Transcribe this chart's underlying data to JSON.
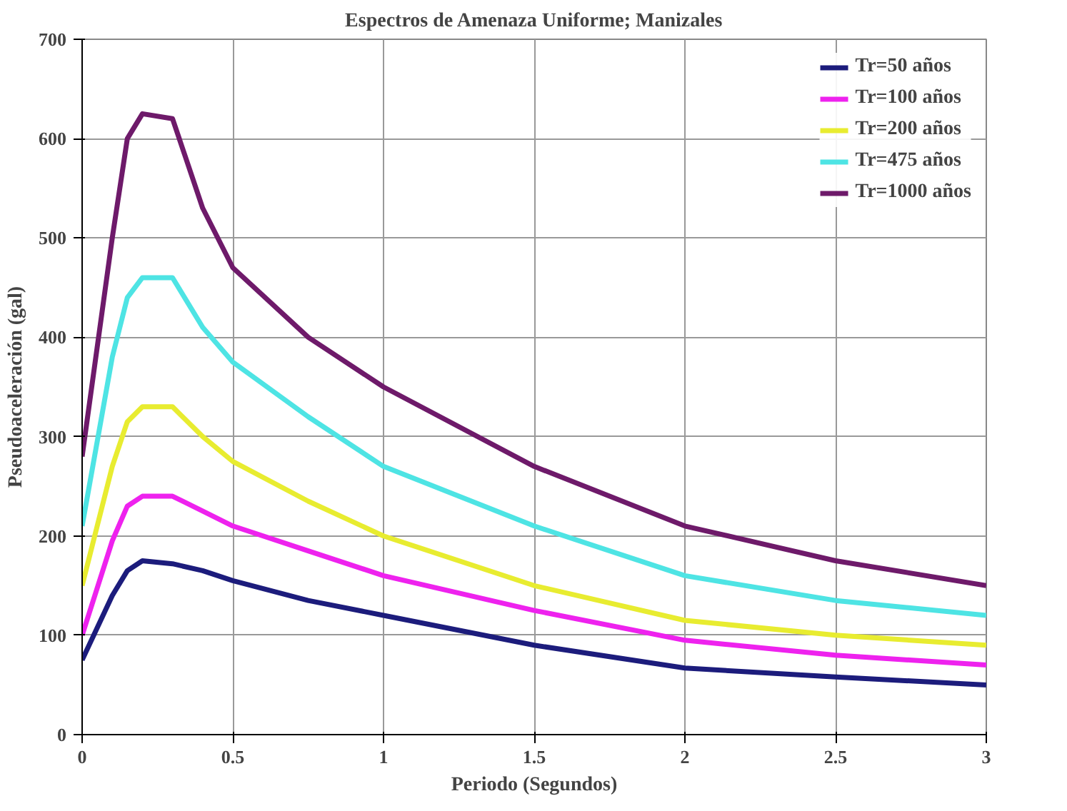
{
  "chart_data": {
    "type": "line",
    "title": "Espectros de Amenaza Uniforme; Manizales",
    "xlabel": "Periodo (Segundos)",
    "ylabel": "Pseudoaceleración (gal)",
    "x": [
      0,
      0.1,
      0.15,
      0.2,
      0.3,
      0.4,
      0.5,
      0.75,
      1,
      1.5,
      2,
      2.5,
      3
    ],
    "series": [
      {
        "name": "Tr=50 años",
        "color": "#1c1c7c",
        "values": [
          75,
          140,
          165,
          175,
          172,
          165,
          155,
          135,
          120,
          90,
          67,
          58,
          50
        ]
      },
      {
        "name": "Tr=100 años",
        "color": "#ee22ee",
        "values": [
          100,
          195,
          230,
          240,
          240,
          225,
          210,
          185,
          160,
          125,
          95,
          80,
          70
        ]
      },
      {
        "name": "Tr=200 años",
        "color": "#e8ec30",
        "values": [
          150,
          270,
          315,
          330,
          330,
          300,
          275,
          235,
          200,
          150,
          115,
          100,
          90
        ]
      },
      {
        "name": "Tr=475 años",
        "color": "#4ee4e4",
        "values": [
          210,
          380,
          440,
          460,
          460,
          410,
          375,
          320,
          270,
          210,
          160,
          135,
          120
        ]
      },
      {
        "name": "Tr=1000 años",
        "color": "#6e1a6a",
        "values": [
          280,
          500,
          600,
          625,
          620,
          530,
          470,
          400,
          350,
          270,
          210,
          175,
          150
        ]
      }
    ],
    "xlim": [
      0,
      3
    ],
    "ylim": [
      0,
      700
    ],
    "xticks": [
      0,
      0.5,
      1,
      1.5,
      2,
      2.5,
      3
    ],
    "yticks": [
      0,
      100,
      200,
      300,
      400,
      500,
      600,
      700
    ],
    "grid": true,
    "legend": "top right",
    "marker": "none",
    "line_style": "solid"
  }
}
